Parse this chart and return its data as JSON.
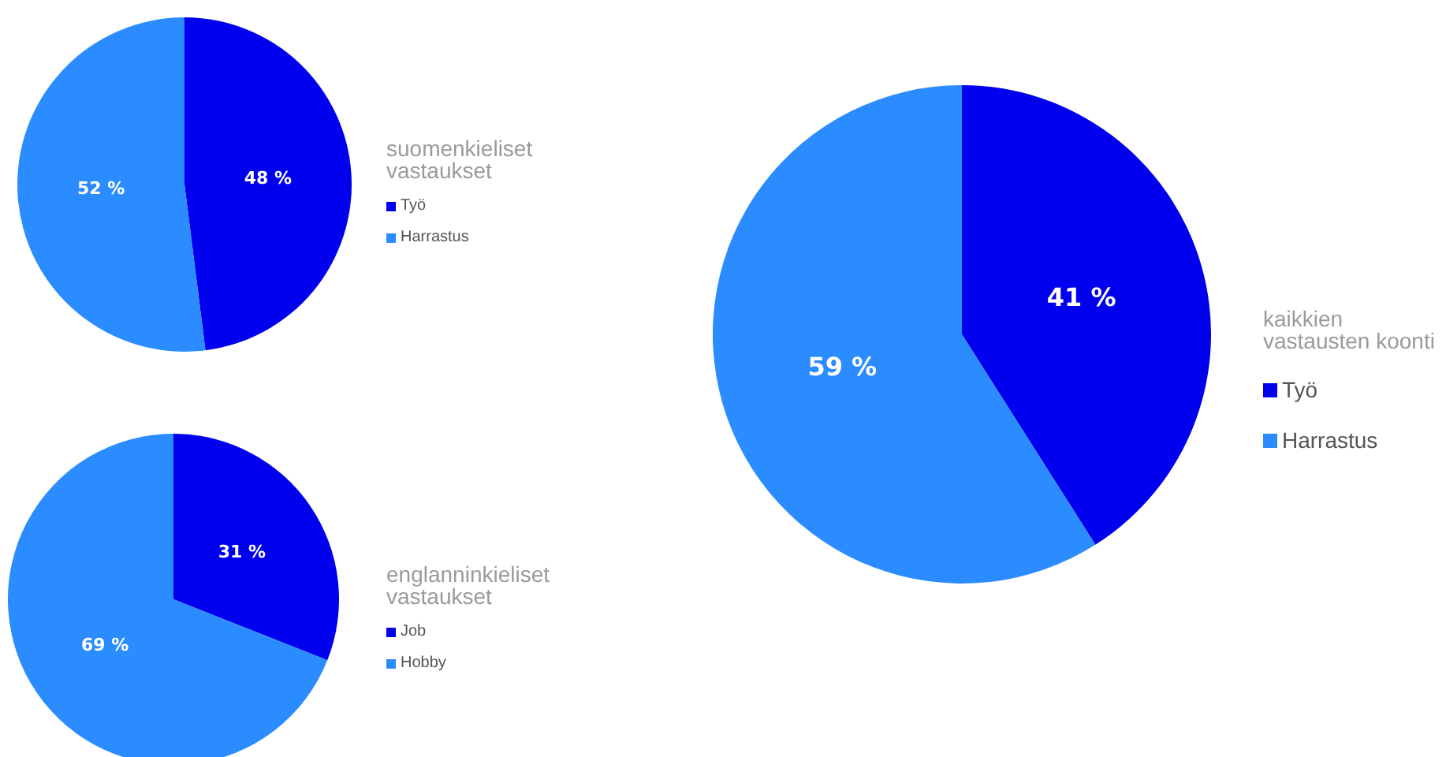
{
  "chart_data": [
    {
      "type": "pie",
      "legend_title": "suomenkieliset vastaukset",
      "categories": [
        "Työ",
        "Harrastus"
      ],
      "values": [
        48,
        52
      ],
      "colors": [
        "#0000ee",
        "#2a8cff"
      ],
      "value_labels": [
        "48 %",
        "52 %"
      ],
      "legend": "right"
    },
    {
      "type": "pie",
      "legend_title": "englanninkieliset vastaukset",
      "categories": [
        "Job",
        "Hobby"
      ],
      "values": [
        31,
        69
      ],
      "colors": [
        "#0000ee",
        "#2a8cff"
      ],
      "value_labels": [
        "31 %",
        "69 %"
      ],
      "legend": "right"
    },
    {
      "type": "pie",
      "legend_title": "kaikkien vastausten koonti",
      "categories": [
        "Työ",
        "Harrastus"
      ],
      "values": [
        41,
        59
      ],
      "colors": [
        "#0000ee",
        "#2a8cff"
      ],
      "value_labels": [
        "41 %",
        "59 %"
      ],
      "legend": "right"
    }
  ]
}
